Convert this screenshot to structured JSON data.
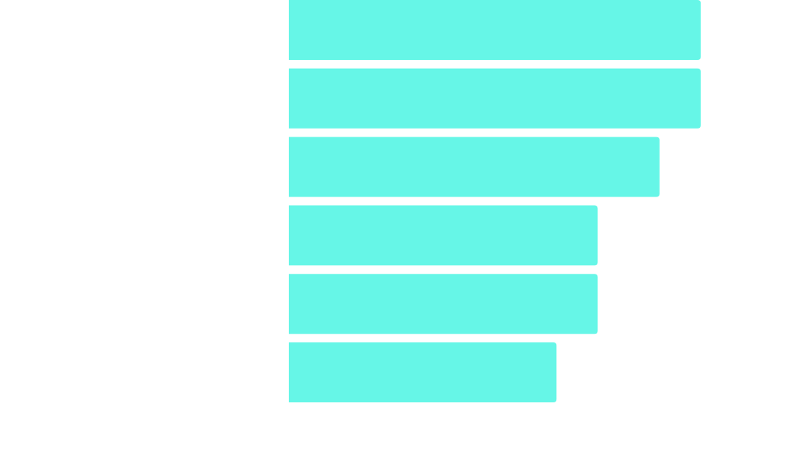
{
  "chart_data": {
    "type": "bar",
    "orientation": "horizontal",
    "values": [
      20,
      20,
      18,
      15,
      15,
      13
    ],
    "color": "#66f6e7"
  }
}
